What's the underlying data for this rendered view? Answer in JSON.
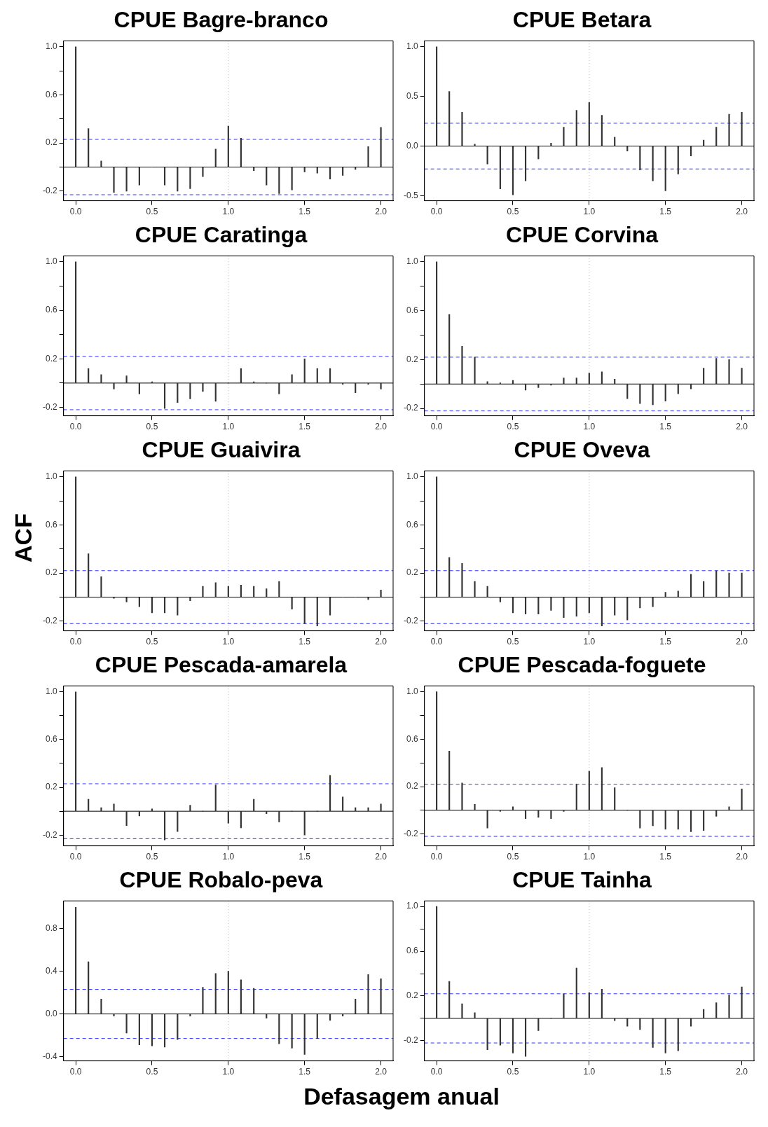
{
  "chart_data": [
    {
      "type": "bar",
      "title": "CPUE Bagre-branco",
      "x": [
        0,
        0.083,
        0.167,
        0.25,
        0.333,
        0.417,
        0.5,
        0.583,
        0.667,
        0.75,
        0.833,
        0.917,
        1,
        1.083,
        1.167,
        1.25,
        1.333,
        1.417,
        1.5,
        1.583,
        1.667,
        1.75,
        1.833,
        1.917,
        2
      ],
      "values": [
        1,
        0.32,
        0.05,
        -0.21,
        -0.2,
        -0.15,
        0,
        -0.15,
        -0.2,
        -0.18,
        -0.08,
        0.15,
        0.34,
        0.24,
        -0.03,
        -0.15,
        -0.22,
        -0.19,
        -0.04,
        -0.05,
        -0.1,
        -0.07,
        -0.02,
        0.17,
        0.33
      ],
      "color": "#333333",
      "xlim": [
        -0.08,
        2.08
      ],
      "ylim": [
        -0.28,
        1.05
      ],
      "xticks": [
        {
          "value": 0,
          "label": "0.0"
        },
        {
          "value": 0.5,
          "label": "0.5"
        },
        {
          "value": 1,
          "label": "1.0"
        },
        {
          "value": 1.5,
          "label": "1.5"
        },
        {
          "value": 2,
          "label": "2.0"
        }
      ],
      "yticks": [
        -0.2,
        {
          "value": 0,
          "label": null
        },
        0.2,
        {
          "value": 0.4,
          "label": null
        },
        0.6,
        {
          "value": 0.8,
          "label": null
        },
        {
          "value": 1,
          "label": "1.0"
        }
      ],
      "ref_lines": [
        {
          "axis": "y",
          "value": 0,
          "color": "#000000",
          "line_style": "solid"
        },
        {
          "axis": "y",
          "value": 0.23,
          "color": "#3333ff",
          "line_style": "dashed"
        },
        {
          "axis": "y",
          "value": -0.23,
          "color": "#3333ff",
          "line_style": "dashed"
        },
        {
          "axis": "x",
          "value": 1,
          "color": "#b0b0b0",
          "line_style": "dotted"
        }
      ]
    },
    {
      "type": "bar",
      "title": "CPUE Betara",
      "x": [
        0,
        0.083,
        0.167,
        0.25,
        0.333,
        0.417,
        0.5,
        0.583,
        0.667,
        0.75,
        0.833,
        0.917,
        1,
        1.083,
        1.167,
        1.25,
        1.333,
        1.417,
        1.5,
        1.583,
        1.667,
        1.75,
        1.833,
        1.917,
        2
      ],
      "values": [
        1,
        0.55,
        0.34,
        0.02,
        -0.18,
        -0.43,
        -0.49,
        -0.35,
        -0.13,
        0.03,
        0.19,
        0.36,
        0.44,
        0.31,
        0.09,
        -0.05,
        -0.24,
        -0.35,
        -0.45,
        -0.28,
        -0.1,
        0.06,
        0.19,
        0.32,
        0.34
      ],
      "color": "#333333",
      "xlim": [
        -0.08,
        2.08
      ],
      "ylim": [
        -0.55,
        1.06
      ],
      "xticks": [
        {
          "value": 0,
          "label": "0.0"
        },
        {
          "value": 0.5,
          "label": "0.5"
        },
        {
          "value": 1,
          "label": "1.0"
        },
        {
          "value": 1.5,
          "label": "1.5"
        },
        {
          "value": 2,
          "label": "2.0"
        }
      ],
      "yticks": [
        -0.5,
        {
          "value": 0,
          "label": "0.0"
        },
        0.5,
        {
          "value": 1,
          "label": "1.0"
        }
      ],
      "ref_lines": [
        {
          "axis": "y",
          "value": 0,
          "color": "#000000",
          "line_style": "solid"
        },
        {
          "axis": "y",
          "value": 0.23,
          "color": "#3333ff",
          "line_style": "dashed"
        },
        {
          "axis": "y",
          "value": -0.23,
          "color": "#3333ff",
          "line_style": "dashed"
        },
        {
          "axis": "x",
          "value": 1,
          "color": "#b0b0b0",
          "line_style": "dotted"
        }
      ]
    },
    {
      "type": "bar",
      "title": "CPUE Caratinga",
      "x": [
        0,
        0.083,
        0.167,
        0.25,
        0.333,
        0.417,
        0.5,
        0.583,
        0.667,
        0.75,
        0.833,
        0.917,
        1,
        1.083,
        1.167,
        1.25,
        1.333,
        1.417,
        1.5,
        1.583,
        1.667,
        1.75,
        1.833,
        1.917,
        2
      ],
      "values": [
        1,
        0.12,
        0.07,
        -0.05,
        0.06,
        -0.09,
        0.01,
        -0.21,
        -0.16,
        -0.13,
        -0.07,
        -0.15,
        0,
        0.12,
        0.01,
        0,
        -0.09,
        0.07,
        0.2,
        0.12,
        0.12,
        -0.01,
        -0.08,
        -0.01,
        -0.05
      ],
      "color": "#333333",
      "xlim": [
        -0.08,
        2.08
      ],
      "ylim": [
        -0.27,
        1.05
      ],
      "xticks": [
        {
          "value": 0,
          "label": "0.0"
        },
        {
          "value": 0.5,
          "label": "0.5"
        },
        {
          "value": 1,
          "label": "1.0"
        },
        {
          "value": 1.5,
          "label": "1.5"
        },
        {
          "value": 2,
          "label": "2.0"
        }
      ],
      "yticks": [
        -0.2,
        {
          "value": 0,
          "label": null
        },
        0.2,
        {
          "value": 0.4,
          "label": null
        },
        0.6,
        {
          "value": 0.8,
          "label": null
        },
        {
          "value": 1,
          "label": "1.0"
        }
      ],
      "ref_lines": [
        {
          "axis": "y",
          "value": 0,
          "color": "#000000",
          "line_style": "solid"
        },
        {
          "axis": "y",
          "value": 0.22,
          "color": "#3333ff",
          "line_style": "dashed"
        },
        {
          "axis": "y",
          "value": -0.22,
          "color": "#3333ff",
          "line_style": "dashed"
        },
        {
          "axis": "x",
          "value": 1,
          "color": "#b0b0b0",
          "line_style": "dotted"
        }
      ]
    },
    {
      "type": "bar",
      "title": "CPUE Corvina",
      "x": [
        0,
        0.083,
        0.167,
        0.25,
        0.333,
        0.417,
        0.5,
        0.583,
        0.667,
        0.75,
        0.833,
        0.917,
        1,
        1.083,
        1.167,
        1.25,
        1.333,
        1.417,
        1.5,
        1.583,
        1.667,
        1.75,
        1.833,
        1.917,
        2
      ],
      "values": [
        1,
        0.57,
        0.31,
        0.22,
        0.02,
        0.01,
        0.03,
        -0.05,
        -0.03,
        -0.01,
        0.05,
        0.05,
        0.09,
        0.1,
        0.04,
        -0.12,
        -0.16,
        -0.17,
        -0.14,
        -0.08,
        -0.04,
        0.13,
        0.21,
        0.2,
        0.13
      ],
      "color": "#333333",
      "xlim": [
        -0.08,
        2.08
      ],
      "ylim": [
        -0.26,
        1.05
      ],
      "xticks": [
        {
          "value": 0,
          "label": "0.0"
        },
        {
          "value": 0.5,
          "label": "0.5"
        },
        {
          "value": 1,
          "label": "1.0"
        },
        {
          "value": 1.5,
          "label": "1.5"
        },
        {
          "value": 2,
          "label": "2.0"
        }
      ],
      "yticks": [
        -0.2,
        {
          "value": 0,
          "label": null
        },
        0.2,
        {
          "value": 0.4,
          "label": null
        },
        0.6,
        {
          "value": 0.8,
          "label": null
        },
        {
          "value": 1,
          "label": "1.0"
        }
      ],
      "ref_lines": [
        {
          "axis": "y",
          "value": 0,
          "color": "#000000",
          "line_style": "solid"
        },
        {
          "axis": "y",
          "value": 0.22,
          "color": "#3333ff",
          "line_style": "dashed"
        },
        {
          "axis": "y",
          "value": -0.22,
          "color": "#3333ff",
          "line_style": "dashed"
        },
        {
          "axis": "x",
          "value": 1,
          "color": "#b0b0b0",
          "line_style": "dotted"
        }
      ]
    },
    {
      "type": "bar",
      "title": "CPUE Guaivira",
      "ylabel": "ACF",
      "x": [
        0,
        0.083,
        0.167,
        0.25,
        0.333,
        0.417,
        0.5,
        0.583,
        0.667,
        0.75,
        0.833,
        0.917,
        1,
        1.083,
        1.167,
        1.25,
        1.333,
        1.417,
        1.5,
        1.583,
        1.667,
        1.75,
        1.833,
        1.917,
        2
      ],
      "values": [
        1,
        0.36,
        0.17,
        -0.01,
        -0.04,
        -0.08,
        -0.13,
        -0.13,
        -0.15,
        -0.03,
        0.09,
        0.12,
        0.09,
        0.1,
        0.09,
        0.07,
        0.13,
        -0.1,
        -0.22,
        -0.24,
        -0.15,
        0,
        0,
        -0.02,
        0.06
      ],
      "color": "#333333",
      "xlim": [
        -0.08,
        2.08
      ],
      "ylim": [
        -0.28,
        1.05
      ],
      "xticks": [
        {
          "value": 0,
          "label": "0.0"
        },
        {
          "value": 0.5,
          "label": "0.5"
        },
        {
          "value": 1,
          "label": "1.0"
        },
        {
          "value": 1.5,
          "label": "1.5"
        },
        {
          "value": 2,
          "label": "2.0"
        }
      ],
      "yticks": [
        -0.2,
        {
          "value": 0,
          "label": null
        },
        0.2,
        {
          "value": 0.4,
          "label": null
        },
        0.6,
        {
          "value": 0.8,
          "label": null
        },
        {
          "value": 1,
          "label": "1.0"
        }
      ],
      "ref_lines": [
        {
          "axis": "y",
          "value": 0,
          "color": "#000000",
          "line_style": "solid"
        },
        {
          "axis": "y",
          "value": 0.22,
          "color": "#3333ff",
          "line_style": "dashed"
        },
        {
          "axis": "y",
          "value": -0.22,
          "color": "#3333ff",
          "line_style": "dashed"
        },
        {
          "axis": "x",
          "value": 1,
          "color": "#b0b0b0",
          "line_style": "dotted"
        }
      ]
    },
    {
      "type": "bar",
      "title": "CPUE Oveva",
      "x": [
        0,
        0.083,
        0.167,
        0.25,
        0.333,
        0.417,
        0.5,
        0.583,
        0.667,
        0.75,
        0.833,
        0.917,
        1,
        1.083,
        1.167,
        1.25,
        1.333,
        1.417,
        1.5,
        1.583,
        1.667,
        1.75,
        1.833,
        1.917,
        2
      ],
      "values": [
        1,
        0.33,
        0.28,
        0.13,
        0.09,
        -0.04,
        -0.13,
        -0.14,
        -0.14,
        -0.11,
        -0.17,
        -0.16,
        -0.13,
        -0.24,
        -0.15,
        -0.19,
        -0.09,
        -0.08,
        0.04,
        0.05,
        0.19,
        0.13,
        0.22,
        0.2,
        0.2
      ],
      "color": "#333333",
      "xlim": [
        -0.08,
        2.08
      ],
      "ylim": [
        -0.28,
        1.05
      ],
      "xticks": [
        {
          "value": 0,
          "label": "0.0"
        },
        {
          "value": 0.5,
          "label": "0.5"
        },
        {
          "value": 1,
          "label": "1.0"
        },
        {
          "value": 1.5,
          "label": "1.5"
        },
        {
          "value": 2,
          "label": "2.0"
        }
      ],
      "yticks": [
        -0.2,
        {
          "value": 0,
          "label": null
        },
        0.2,
        {
          "value": 0.4,
          "label": null
        },
        0.6,
        {
          "value": 0.8,
          "label": null
        },
        {
          "value": 1,
          "label": "1.0"
        }
      ],
      "ref_lines": [
        {
          "axis": "y",
          "value": 0,
          "color": "#000000",
          "line_style": "solid"
        },
        {
          "axis": "y",
          "value": 0.22,
          "color": "#3333ff",
          "line_style": "dashed"
        },
        {
          "axis": "y",
          "value": -0.22,
          "color": "#3333ff",
          "line_style": "dashed"
        },
        {
          "axis": "x",
          "value": 1,
          "color": "#b0b0b0",
          "line_style": "dotted"
        }
      ]
    },
    {
      "type": "bar",
      "title": "CPUE Pescada-amarela",
      "x": [
        0,
        0.083,
        0.167,
        0.25,
        0.333,
        0.417,
        0.5,
        0.583,
        0.667,
        0.75,
        0.833,
        0.917,
        1,
        1.083,
        1.167,
        1.25,
        1.333,
        1.417,
        1.5,
        1.583,
        1.667,
        1.75,
        1.833,
        1.917,
        2
      ],
      "values": [
        1,
        0.1,
        0.03,
        0.06,
        -0.12,
        -0.04,
        0.02,
        -0.24,
        -0.17,
        0.05,
        0,
        0.22,
        -0.1,
        -0.14,
        0.1,
        -0.02,
        -0.09,
        0,
        -0.2,
        0,
        0.3,
        0.12,
        0.03,
        0.03,
        0.06
      ],
      "color": "#333333",
      "xlim": [
        -0.08,
        2.08
      ],
      "ylim": [
        -0.29,
        1.05
      ],
      "xticks": [
        {
          "value": 0,
          "label": "0.0"
        },
        {
          "value": 0.5,
          "label": "0.5"
        },
        {
          "value": 1,
          "label": "1.0"
        },
        {
          "value": 1.5,
          "label": "1.5"
        },
        {
          "value": 2,
          "label": "2.0"
        }
      ],
      "yticks": [
        -0.2,
        {
          "value": 0,
          "label": null
        },
        0.2,
        {
          "value": 0.4,
          "label": null
        },
        0.6,
        {
          "value": 0.8,
          "label": null
        },
        {
          "value": 1,
          "label": "1.0"
        }
      ],
      "ref_lines": [
        {
          "axis": "y",
          "value": 0,
          "color": "#000000",
          "line_style": "solid"
        },
        {
          "axis": "y",
          "value": 0.23,
          "color": "#3333ff",
          "line_style": "dashed"
        },
        {
          "axis": "y",
          "value": -0.23,
          "color": "#3333ff",
          "line_style": "dashed"
        },
        {
          "axis": "x",
          "value": 1,
          "color": "#b0b0b0",
          "line_style": "dotted"
        }
      ]
    },
    {
      "type": "bar",
      "title": "CPUE Pescada-foguete",
      "x": [
        0,
        0.083,
        0.167,
        0.25,
        0.333,
        0.417,
        0.5,
        0.583,
        0.667,
        0.75,
        0.833,
        0.917,
        1,
        1.083,
        1.167,
        1.25,
        1.333,
        1.417,
        1.5,
        1.583,
        1.667,
        1.75,
        1.833,
        1.917,
        2
      ],
      "values": [
        1,
        0.5,
        0.23,
        0.05,
        -0.15,
        -0.01,
        0.03,
        -0.07,
        -0.06,
        -0.07,
        -0.01,
        0.22,
        0.33,
        0.36,
        0.19,
        0,
        -0.15,
        -0.13,
        -0.16,
        -0.16,
        -0.18,
        -0.17,
        -0.05,
        0.03,
        0.18
      ],
      "color": "#333333",
      "xlim": [
        -0.08,
        2.08
      ],
      "ylim": [
        -0.3,
        1.05
      ],
      "xticks": [
        {
          "value": 0,
          "label": "0.0"
        },
        {
          "value": 0.5,
          "label": "0.5"
        },
        {
          "value": 1,
          "label": "1.0"
        },
        {
          "value": 1.5,
          "label": "1.5"
        },
        {
          "value": 2,
          "label": "2.0"
        }
      ],
      "yticks": [
        -0.2,
        {
          "value": 0,
          "label": null
        },
        0.2,
        {
          "value": 0.4,
          "label": null
        },
        0.6,
        {
          "value": 0.8,
          "label": null
        },
        {
          "value": 1,
          "label": "1.0"
        }
      ],
      "ref_lines": [
        {
          "axis": "y",
          "value": 0,
          "color": "#000000",
          "line_style": "solid"
        },
        {
          "axis": "y",
          "value": 0.22,
          "color": "#3333ff",
          "line_style": "dashed"
        },
        {
          "axis": "y",
          "value": -0.22,
          "color": "#3333ff",
          "line_style": "dashed"
        },
        {
          "axis": "x",
          "value": 1,
          "color": "#b0b0b0",
          "line_style": "dotted"
        }
      ]
    },
    {
      "type": "bar",
      "title": "CPUE Robalo-peva",
      "xlabel": "Defasagem anual",
      "x": [
        0,
        0.083,
        0.167,
        0.25,
        0.333,
        0.417,
        0.5,
        0.583,
        0.667,
        0.75,
        0.833,
        0.917,
        1,
        1.083,
        1.167,
        1.25,
        1.333,
        1.417,
        1.5,
        1.583,
        1.667,
        1.75,
        1.833,
        1.917,
        2
      ],
      "values": [
        1,
        0.49,
        0.14,
        -0.02,
        -0.18,
        -0.29,
        -0.3,
        -0.31,
        -0.24,
        -0.02,
        0.25,
        0.38,
        0.4,
        0.32,
        0.24,
        -0.04,
        -0.28,
        -0.32,
        -0.38,
        -0.23,
        -0.06,
        -0.02,
        0.14,
        0.37,
        0.33
      ],
      "color": "#333333",
      "xlim": [
        -0.08,
        2.08
      ],
      "ylim": [
        -0.44,
        1.06
      ],
      "xticks": [
        {
          "value": 0,
          "label": "0.0"
        },
        {
          "value": 0.5,
          "label": "0.5"
        },
        {
          "value": 1,
          "label": "1.0"
        },
        {
          "value": 1.5,
          "label": "1.5"
        },
        {
          "value": 2,
          "label": "2.0"
        }
      ],
      "yticks": [
        -0.4,
        {
          "value": 0,
          "label": "0.0"
        },
        0.4,
        0.8
      ],
      "ref_lines": [
        {
          "axis": "y",
          "value": 0,
          "color": "#000000",
          "line_style": "solid"
        },
        {
          "axis": "y",
          "value": 0.23,
          "color": "#3333ff",
          "line_style": "dashed"
        },
        {
          "axis": "y",
          "value": -0.23,
          "color": "#3333ff",
          "line_style": "dashed"
        },
        {
          "axis": "x",
          "value": 1,
          "color": "#b0b0b0",
          "line_style": "dotted"
        }
      ]
    },
    {
      "type": "bar",
      "title": "CPUE Tainha",
      "x": [
        0,
        0.083,
        0.167,
        0.25,
        0.333,
        0.417,
        0.5,
        0.583,
        0.667,
        0.75,
        0.833,
        0.917,
        1,
        1.083,
        1.167,
        1.25,
        1.333,
        1.417,
        1.5,
        1.583,
        1.667,
        1.75,
        1.833,
        1.917,
        2
      ],
      "values": [
        1,
        0.33,
        0.13,
        0.05,
        -0.28,
        -0.24,
        -0.31,
        -0.34,
        -0.11,
        0,
        0.22,
        0.45,
        0.23,
        0.26,
        -0.02,
        -0.07,
        -0.1,
        -0.26,
        -0.31,
        -0.29,
        -0.07,
        0.08,
        0.14,
        0.21,
        0.28
      ],
      "color": "#333333",
      "xlim": [
        -0.08,
        2.08
      ],
      "ylim": [
        -0.38,
        1.05
      ],
      "xticks": [
        {
          "value": 0,
          "label": "0.0"
        },
        {
          "value": 0.5,
          "label": "0.5"
        },
        {
          "value": 1,
          "label": "1.0"
        },
        {
          "value": 1.5,
          "label": "1.5"
        },
        {
          "value": 2,
          "label": "2.0"
        }
      ],
      "yticks": [
        -0.2,
        {
          "value": 0,
          "label": null
        },
        0.2,
        {
          "value": 0.4,
          "label": null
        },
        0.6,
        {
          "value": 0.8,
          "label": null
        },
        {
          "value": 1,
          "label": "1.0"
        }
      ],
      "ref_lines": [
        {
          "axis": "y",
          "value": 0,
          "color": "#000000",
          "line_style": "solid"
        },
        {
          "axis": "y",
          "value": 0.22,
          "color": "#3333ff",
          "line_style": "dashed"
        },
        {
          "axis": "y",
          "value": -0.22,
          "color": "#3333ff",
          "line_style": "dashed"
        },
        {
          "axis": "x",
          "value": 1,
          "color": "#b0b0b0",
          "line_style": "dotted"
        }
      ]
    }
  ]
}
